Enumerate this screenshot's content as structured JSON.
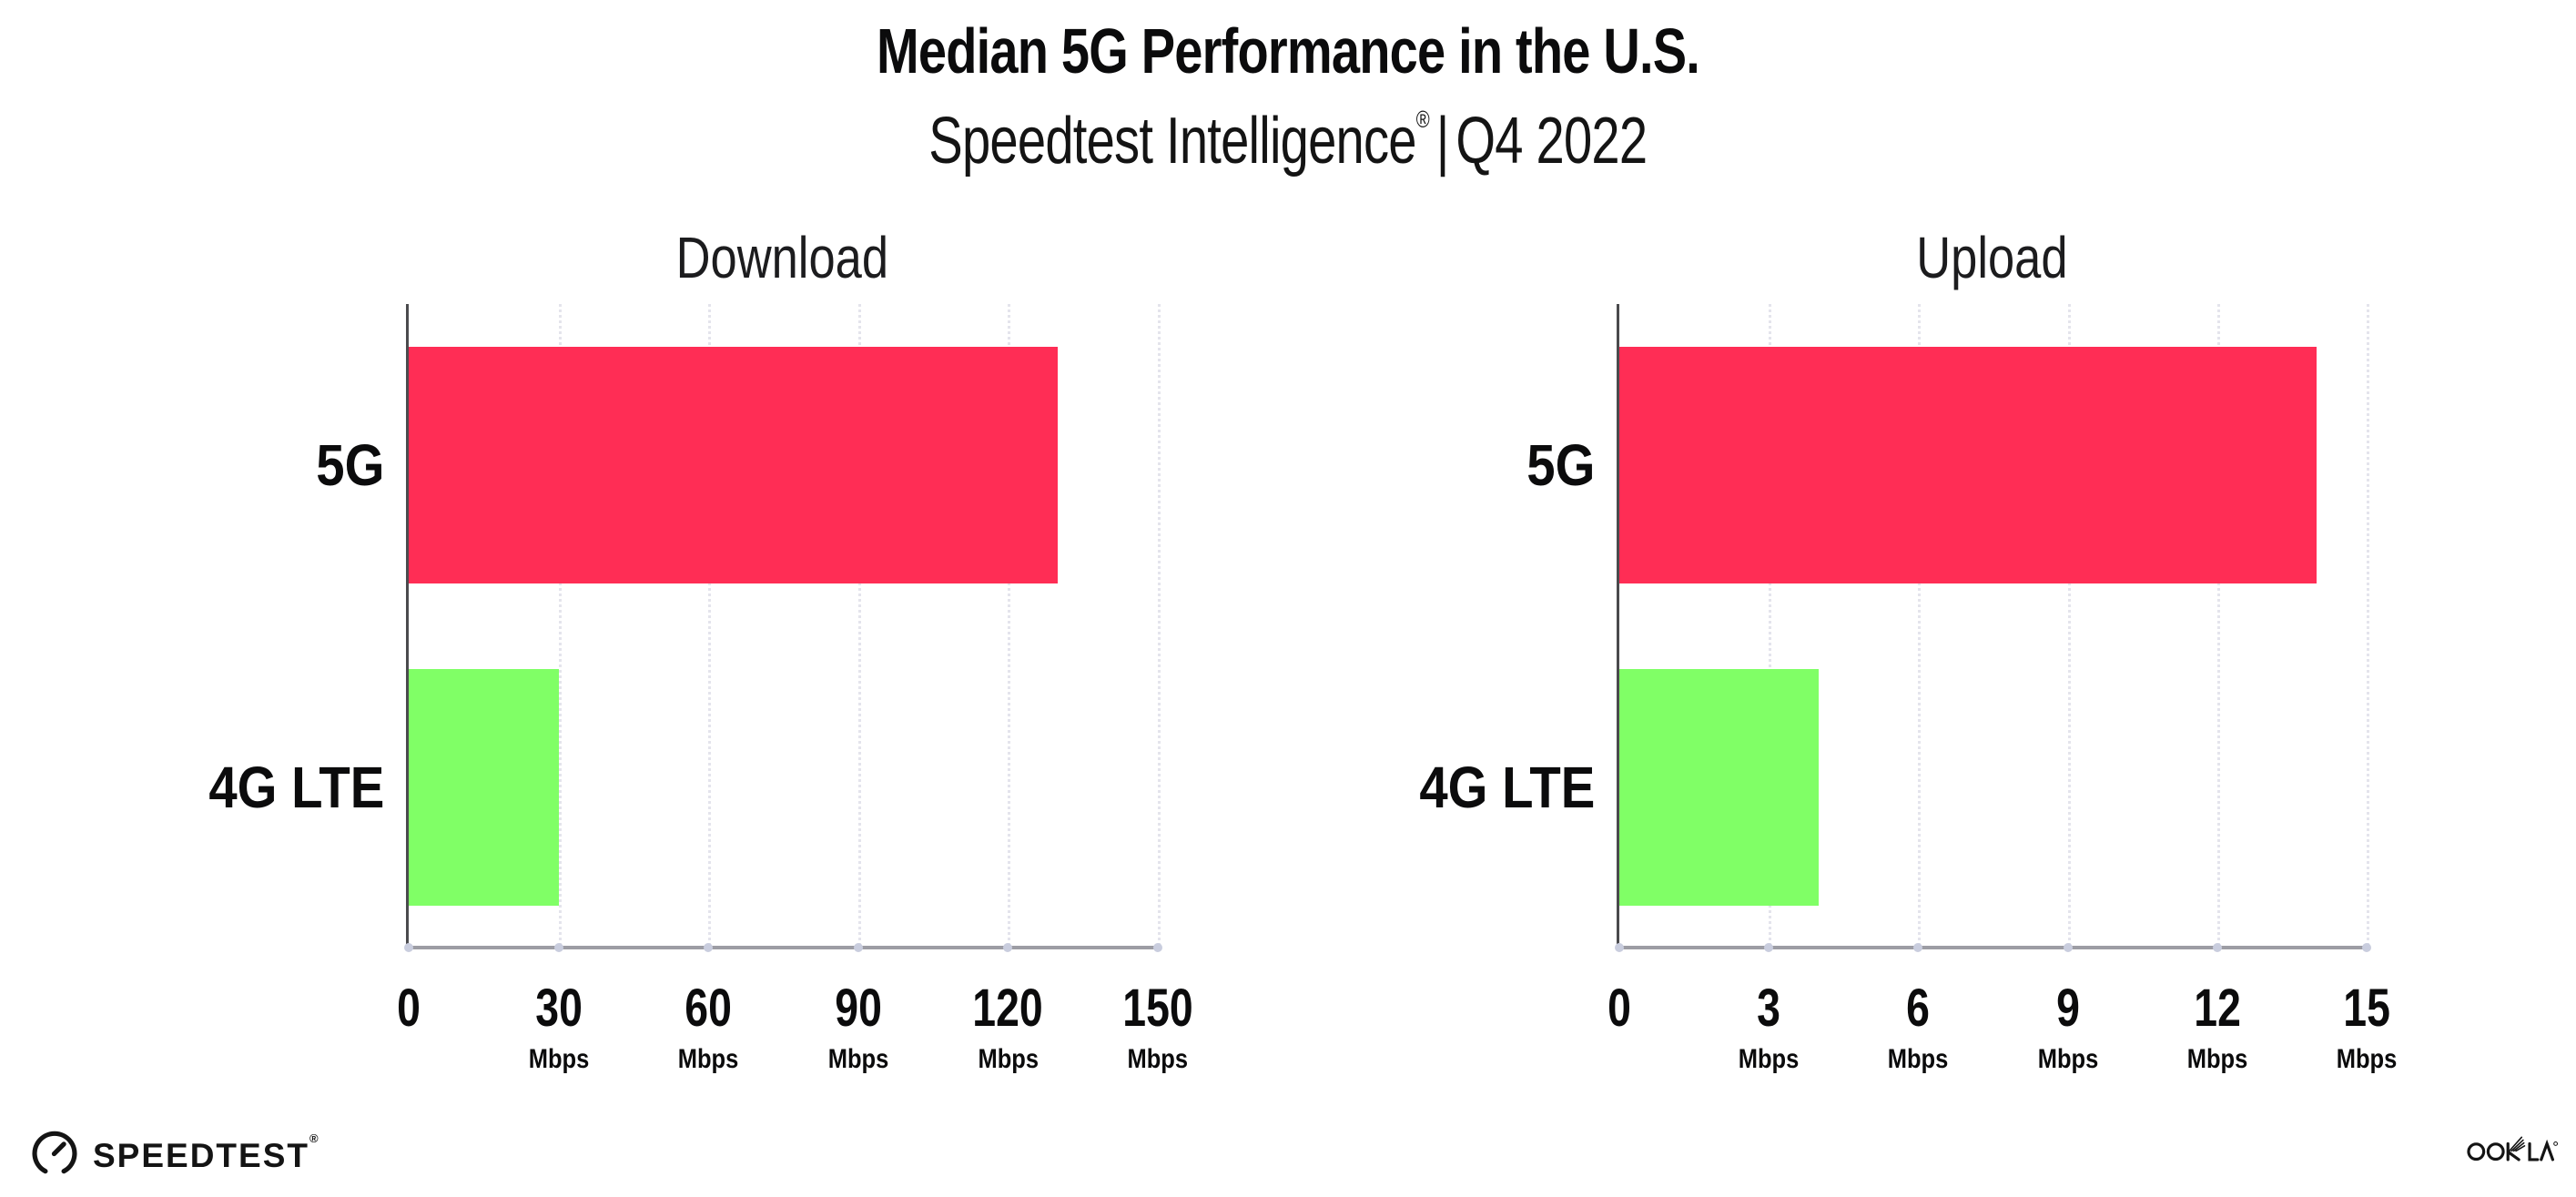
{
  "header": {
    "title": "Median 5G Performance in the U.S.",
    "subtitle": {
      "product": "Speedtest Intelligence",
      "registered_mark": "®",
      "separator": "|",
      "period": "Q4 2022"
    }
  },
  "chart_data": [
    {
      "type": "bar",
      "orientation": "horizontal",
      "title": "Download",
      "categories": [
        "5G",
        "4G LTE"
      ],
      "values": [
        130,
        30
      ],
      "unit": "Mbps",
      "xlim": [
        0,
        150
      ],
      "xticks": [
        {
          "v": 0,
          "label": "0",
          "unit": ""
        },
        {
          "v": 30,
          "label": "30",
          "unit": "Mbps"
        },
        {
          "v": 60,
          "label": "60",
          "unit": "Mbps"
        },
        {
          "v": 90,
          "label": "90",
          "unit": "Mbps"
        },
        {
          "v": 120,
          "label": "120",
          "unit": "Mbps"
        },
        {
          "v": 150,
          "label": "150",
          "unit": "Mbps"
        }
      ],
      "bar_colors": [
        "#FF2D55",
        "#80FF66"
      ],
      "gridlines": "vertical-dotted",
      "legend": "none"
    },
    {
      "type": "bar",
      "orientation": "horizontal",
      "title": "Upload",
      "categories": [
        "5G",
        "4G LTE"
      ],
      "values": [
        14,
        4
      ],
      "unit": "Mbps",
      "xlim": [
        0,
        15
      ],
      "xticks": [
        {
          "v": 0,
          "label": "0",
          "unit": ""
        },
        {
          "v": 3,
          "label": "3",
          "unit": "Mbps"
        },
        {
          "v": 6,
          "label": "6",
          "unit": "Mbps"
        },
        {
          "v": 9,
          "label": "9",
          "unit": "Mbps"
        },
        {
          "v": 12,
          "label": "12",
          "unit": "Mbps"
        },
        {
          "v": 15,
          "label": "15",
          "unit": "Mbps"
        }
      ],
      "bar_colors": [
        "#FF2D55",
        "#80FF66"
      ],
      "gridlines": "vertical-dotted",
      "legend": "none"
    }
  ],
  "colors": {
    "bar_5g": "#FF2D55",
    "bar_4g_lte": "#80FF66",
    "axis_y": "#4a4a4d",
    "axis_x": "#9d9da4",
    "gridline": "#e4e4ec",
    "background": "#ffffff"
  },
  "footer": {
    "speedtest_wordmark": "SPEEDTEST",
    "speedtest_registered_mark": "®",
    "ookla_wordmark": "OOKLA"
  }
}
